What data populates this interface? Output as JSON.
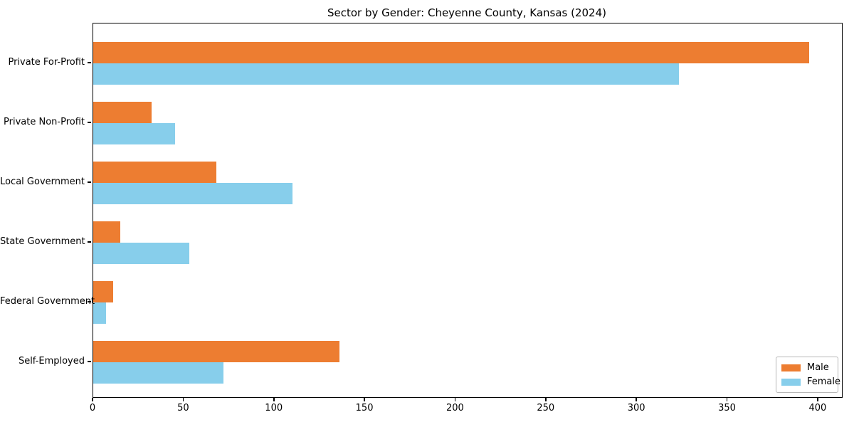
{
  "title": "Sector by Gender: Cheyenne County, Kansas (2024)",
  "chart_data": {
    "type": "bar",
    "orientation": "horizontal",
    "title": "Sector by Gender: Cheyenne County, Kansas (2024)",
    "categories": [
      "Private For-Profit",
      "Private Non-Profit",
      "Local Government",
      "State Government",
      "Federal Government",
      "Self-Employed"
    ],
    "series": [
      {
        "name": "Male",
        "color": "#ED7D31",
        "values": [
          395,
          32,
          68,
          15,
          11,
          136
        ]
      },
      {
        "name": "Female",
        "color": "#87CEEB",
        "values": [
          323,
          45,
          110,
          53,
          7,
          72
        ]
      }
    ],
    "xlabel": "",
    "ylabel": "",
    "xlim": [
      0,
      413
    ],
    "xticks": [
      0,
      50,
      100,
      150,
      200,
      250,
      300,
      350,
      400
    ],
    "grid": false,
    "legend_position": "lower right",
    "bar_color_male": "#ED7D31",
    "bar_color_female": "#87CEEB",
    "axis_color": "#000000"
  }
}
